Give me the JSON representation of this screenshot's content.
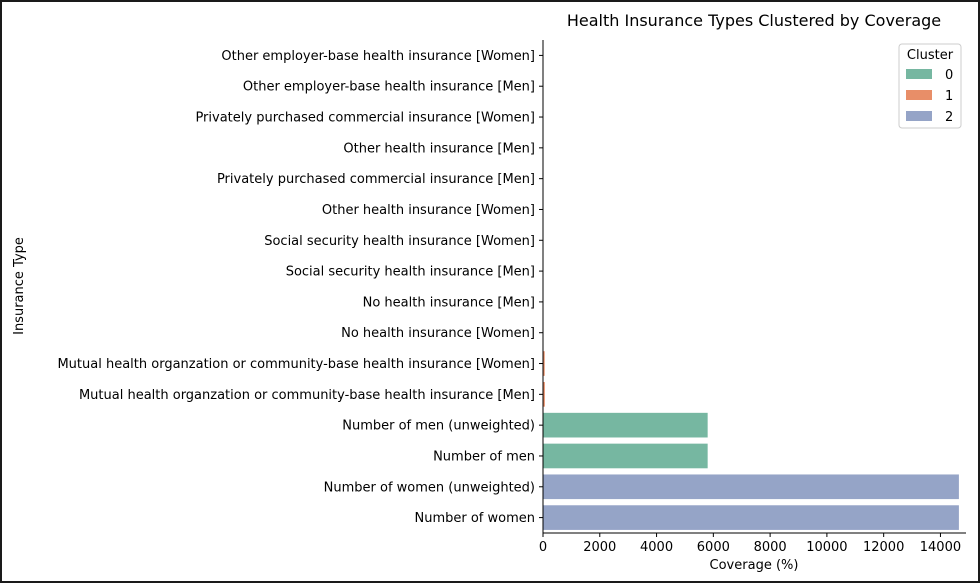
{
  "chart_data": {
    "type": "bar",
    "orientation": "horizontal",
    "title": "Health Insurance Types Clustered by Coverage",
    "xlabel": "Coverage (%)",
    "ylabel": "Insurance Type",
    "xlim": [
      0,
      14900
    ],
    "xticks": [
      0,
      2000,
      4000,
      6000,
      8000,
      10000,
      12000,
      14000
    ],
    "grid": false,
    "legend": {
      "title": "Cluster",
      "placement": "top-right",
      "entries": [
        {
          "label": "0",
          "color": "#76b7a1"
        },
        {
          "label": "1",
          "color": "#e88e68"
        },
        {
          "label": "2",
          "color": "#95a4c7"
        }
      ]
    },
    "categories": [
      "Other employer-base health insurance [Women]",
      "Other employer-base health insurance [Men]",
      "Privately purchased commercial insurance [Women]",
      "Other health insurance [Men]",
      "Privately purchased commercial insurance [Men]",
      "Other health insurance [Women]",
      "Social security health insurance [Women]",
      "Social security health insurance [Men]",
      "No health insurance [Men]",
      "No health insurance [Women]",
      "Mutual health organzation or community-base health insurance [Women]",
      "Mutual health organzation or community-base health insurance [Men]",
      "Number of men (unweighted)",
      "Number of men",
      "Number of women (unweighted)",
      "Number of women"
    ],
    "values": [
      0.5,
      0.6,
      1.0,
      1.5,
      2.0,
      2.5,
      3.0,
      3.5,
      5.0,
      6.0,
      60,
      65,
      5800,
      5800,
      14650,
      14650
    ],
    "clusters": [
      0,
      0,
      0,
      0,
      0,
      0,
      0,
      0,
      0,
      0,
      1,
      1,
      0,
      0,
      2,
      2
    ]
  }
}
